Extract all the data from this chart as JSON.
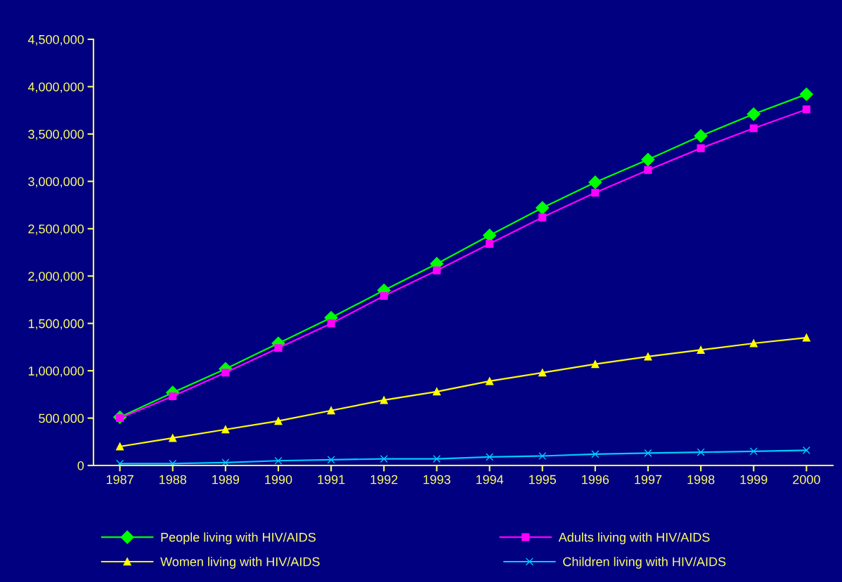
{
  "chart_data": {
    "type": "line",
    "categories": [
      "1987",
      "1988",
      "1989",
      "1990",
      "1991",
      "1992",
      "1993",
      "1994",
      "1995",
      "1996",
      "1997",
      "1998",
      "1999",
      "2000"
    ],
    "series": [
      {
        "name": "People living with HIV/AIDS",
        "color": "#00ff00",
        "marker": "diamond",
        "values": [
          510000,
          770000,
          1020000,
          1290000,
          1560000,
          1850000,
          2130000,
          2430000,
          2720000,
          2990000,
          3230000,
          3480000,
          3710000,
          3920000
        ]
      },
      {
        "name": "Adults living with HIV/AIDS",
        "color": "#ff00ff",
        "marker": "square",
        "values": [
          500000,
          730000,
          980000,
          1240000,
          1500000,
          1790000,
          2060000,
          2340000,
          2620000,
          2880000,
          3120000,
          3350000,
          3560000,
          3760000
        ]
      },
      {
        "name": "Women living with HIV/AIDS",
        "color": "#ffff00",
        "marker": "triangle",
        "values": [
          200000,
          290000,
          380000,
          470000,
          580000,
          690000,
          780000,
          890000,
          980000,
          1070000,
          1150000,
          1220000,
          1290000,
          1350000
        ]
      },
      {
        "name": "Children living with HIV/AIDS",
        "color": "#00ccff",
        "marker": "cross",
        "values": [
          20000,
          20000,
          30000,
          50000,
          60000,
          70000,
          70000,
          90000,
          100000,
          120000,
          130000,
          140000,
          150000,
          160000
        ]
      }
    ],
    "ylim": [
      0,
      4500000
    ],
    "yticks": [
      {
        "value": 0,
        "label": "0"
      },
      {
        "value": 500000,
        "label": "500,000"
      },
      {
        "value": 1000000,
        "label": "1,000,000"
      },
      {
        "value": 1500000,
        "label": "1,500,000"
      },
      {
        "value": 2000000,
        "label": "2,000,000"
      },
      {
        "value": 2500000,
        "label": "2,500,000"
      },
      {
        "value": 3000000,
        "label": "3,000,000"
      },
      {
        "value": 3500000,
        "label": "3,500,000"
      },
      {
        "value": 4000000,
        "label": "4,000,000"
      },
      {
        "value": 4500000,
        "label": "4,500,000"
      }
    ],
    "grid": false,
    "legend": "bottom",
    "line_style": "solid"
  }
}
